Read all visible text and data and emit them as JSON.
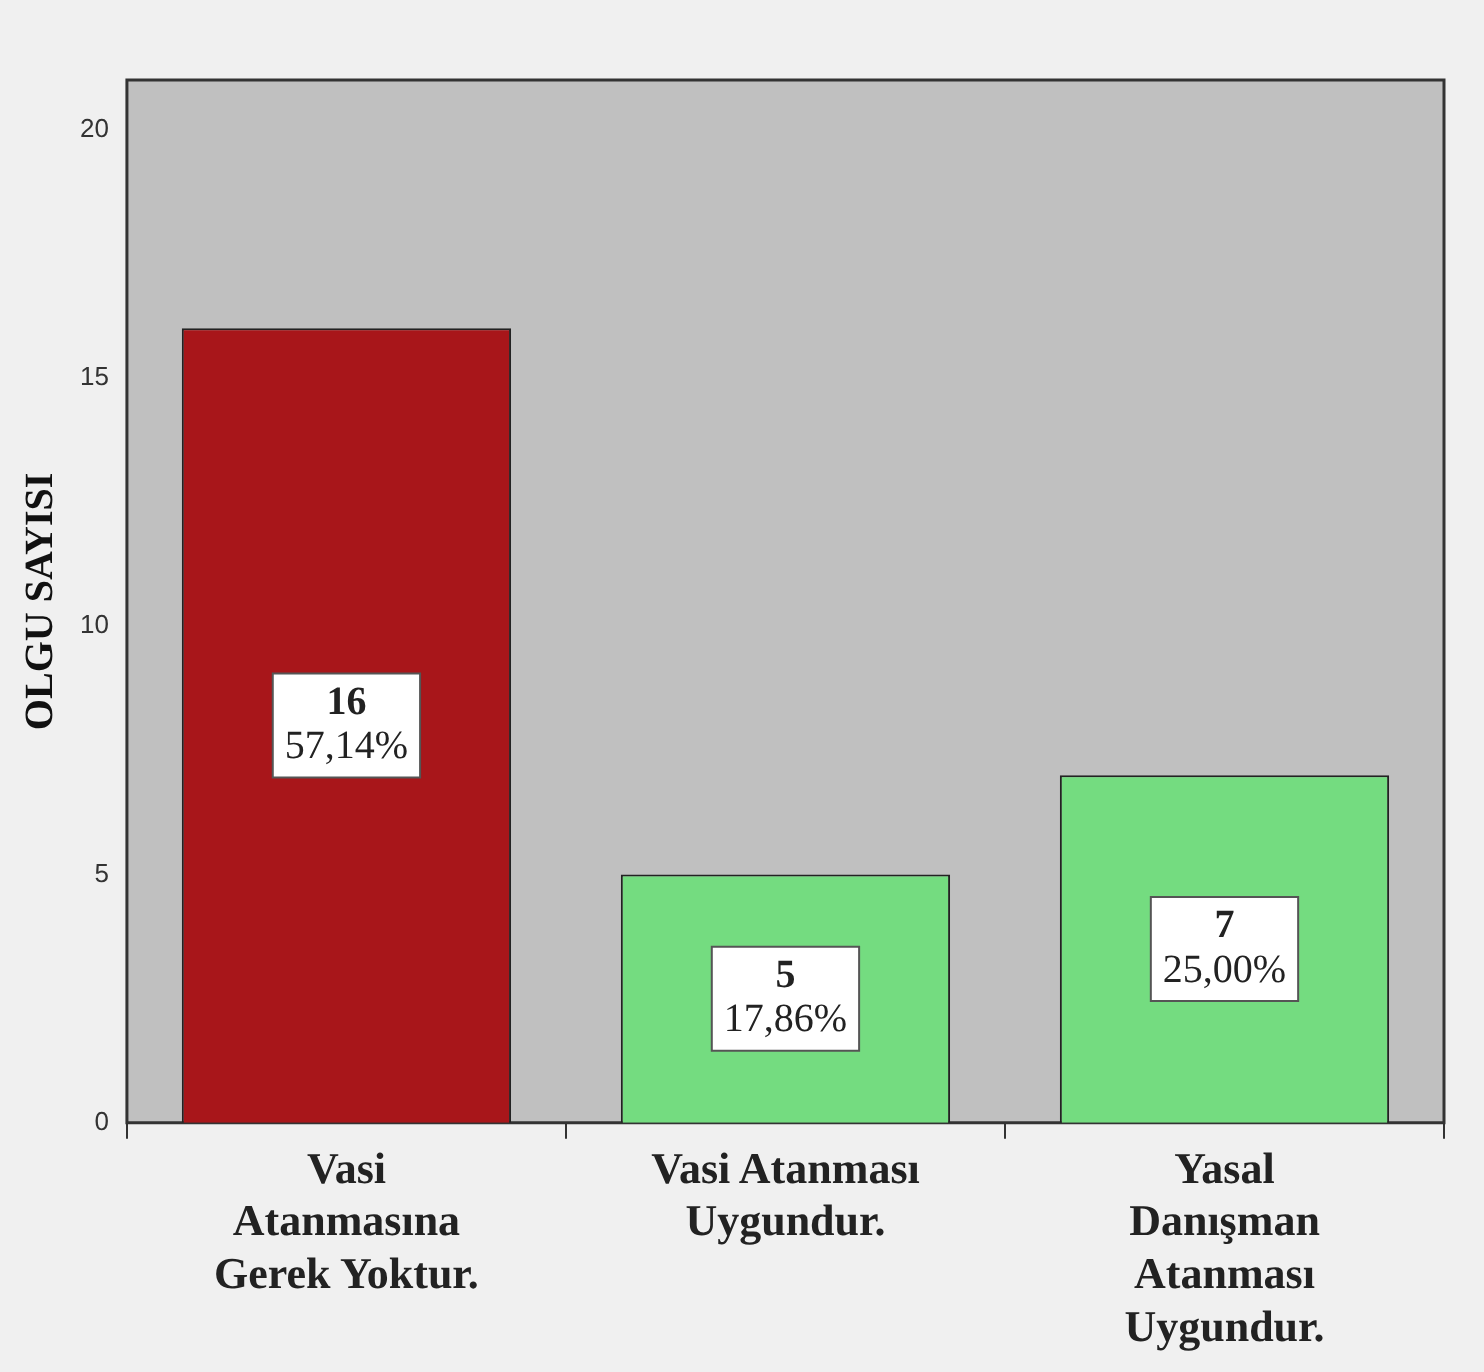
{
  "chart_data": {
    "type": "bar",
    "ylabel": "OLGU SAYISI",
    "categories": [
      "Vasi Atanmasına Gerek Yoktur.",
      "Vasi Atanması Uygundur.",
      "Yasal Danışman Atanması Uygundur."
    ],
    "values": [
      16,
      5,
      7
    ],
    "colors": [
      "#a8161a",
      "#74dc80",
      "#74dc80"
    ],
    "value_labels": [
      "16\n57,14%",
      "5\n17,86%",
      "7\n25,00%"
    ],
    "ylim": [
      0,
      21
    ],
    "yticks": [
      0,
      5,
      10,
      15,
      20
    ],
    "grid": false,
    "legend": false
  }
}
